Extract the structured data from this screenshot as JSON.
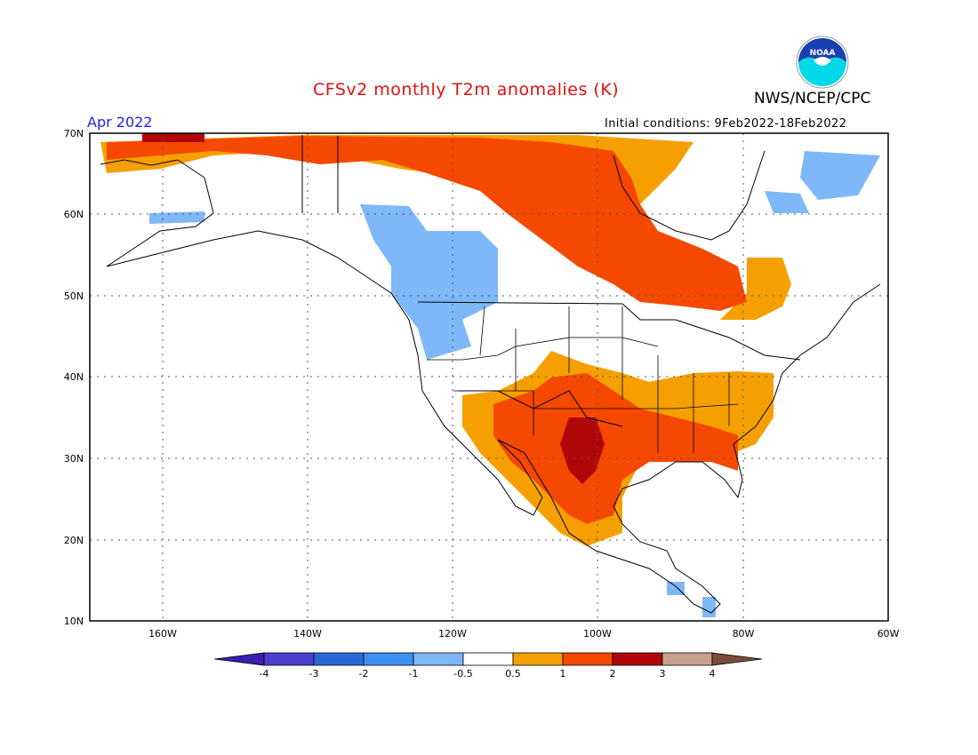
{
  "header": {
    "title": "CFSv2 monthly T2m anomalies (K)",
    "agency": "NWS/NCEP/CPC",
    "month": "Apr 2022",
    "initial_conditions": "Initial conditions: 9Feb2022-18Feb2022",
    "logo_text": "NOAA"
  },
  "map": {
    "lat_labels": [
      "70N",
      "60N",
      "50N",
      "40N",
      "30N",
      "20N",
      "10N"
    ],
    "lon_labels": [
      "160W",
      "140W",
      "120W",
      "100W",
      "80W",
      "60W"
    ],
    "extent": {
      "lon": [
        -170,
        -60
      ],
      "lat": [
        10,
        70
      ]
    }
  },
  "colorbar": {
    "ticks": [
      "-4",
      "-3",
      "-2",
      "-1",
      "-0.5",
      "0.5",
      "1",
      "2",
      "3",
      "4"
    ],
    "colors": [
      "#3a1fb0",
      "#4a3fd0",
      "#2a6ad8",
      "#3c8ff0",
      "#7fb8f8",
      "#ffffff",
      "#f5a000",
      "#f54800",
      "#b00808",
      "#c8a090",
      "#7a4a3a"
    ]
  },
  "colors": {
    "title": "#e01010",
    "month": "#2323e0",
    "warm_light": "#f5a000",
    "warm": "#f54800",
    "warm_dark": "#b00808",
    "cool_light": "#7fb8f8"
  }
}
